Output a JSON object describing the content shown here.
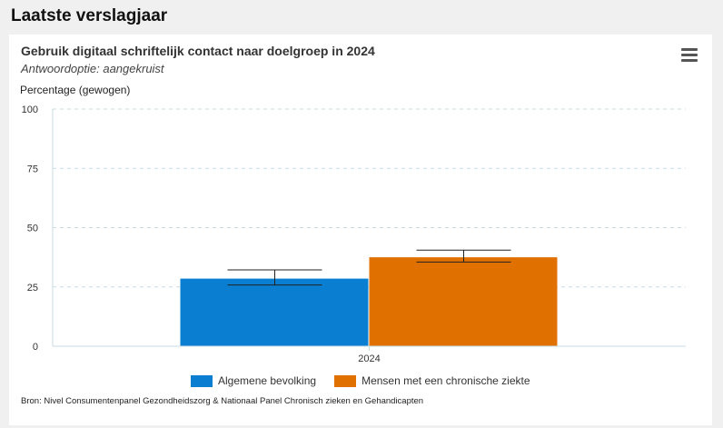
{
  "page": {
    "section_title": "Laatste verslagjaar"
  },
  "card": {
    "menu_icon": "hamburger-menu-icon",
    "source": "Bron: Nivel Consumentenpanel Gezondheidszorg & Nationaal Panel Chronisch zieken en Gehandicapten"
  },
  "chart_data": {
    "type": "bar",
    "title": "Gebruik digitaal schriftelijk contact naar doelgroep in 2024",
    "subtitle": "Antwoordoptie: aangekruist",
    "ylabel": "Percentage (gewogen)",
    "xlabel": "",
    "ylim": [
      0,
      100
    ],
    "yticks": [
      0,
      25,
      50,
      75,
      100
    ],
    "grid": true,
    "legend_position": "bottom",
    "categories": [
      "2024"
    ],
    "series": [
      {
        "name": "Algemene bevolking",
        "color": "#0a7fd1",
        "values": [
          28.5
        ],
        "error_low": [
          25.8
        ],
        "error_high": [
          32.2
        ]
      },
      {
        "name": "Mensen met een chronische ziekte",
        "color": "#e07000",
        "values": [
          37.5
        ],
        "error_low": [
          35.5
        ],
        "error_high": [
          40.5
        ]
      }
    ]
  }
}
